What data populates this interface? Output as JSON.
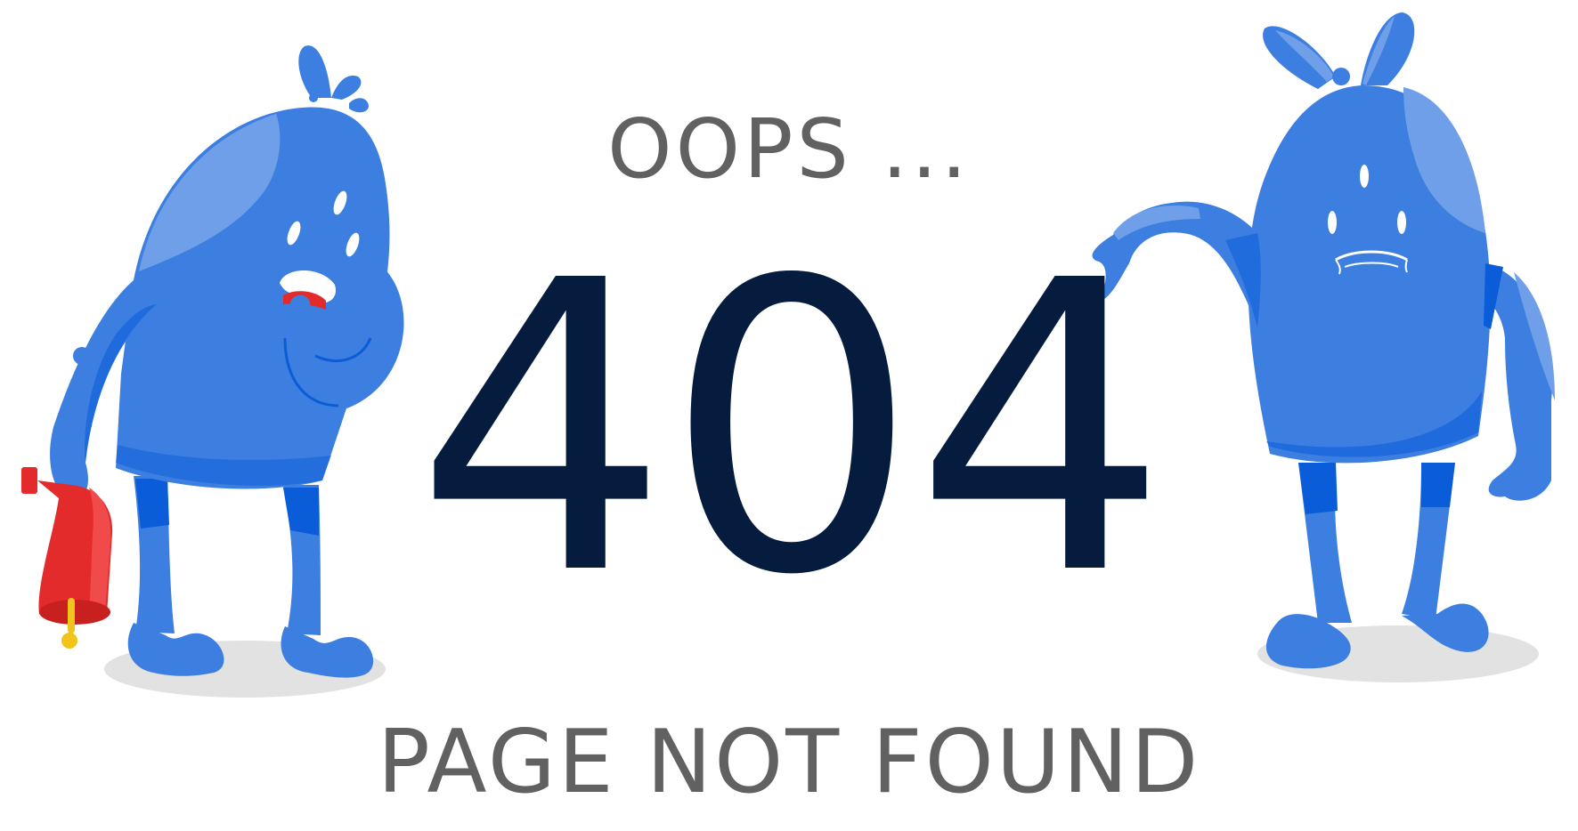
{
  "page": {
    "oops_text": "OOPS ...",
    "error_code": "404",
    "subtitle": "PAGE NOT FOUND"
  },
  "colors": {
    "background": "#ffffff",
    "code_color": "#061c3f",
    "text_gray": "#616161",
    "monster_blue": "#3d7fe0",
    "monster_highlight": "#6f9fe8",
    "monster_dark": "#0b5cd8",
    "bell_red": "#e32b2b",
    "bell_yellow": "#f0c419",
    "shadow_gray": "#e2e2e2"
  },
  "illustration": {
    "left_character": "blue-monster-with-bell",
    "right_character": "blue-monster-pointing",
    "props": [
      "red-bell-icon",
      "ground-shadow"
    ]
  }
}
